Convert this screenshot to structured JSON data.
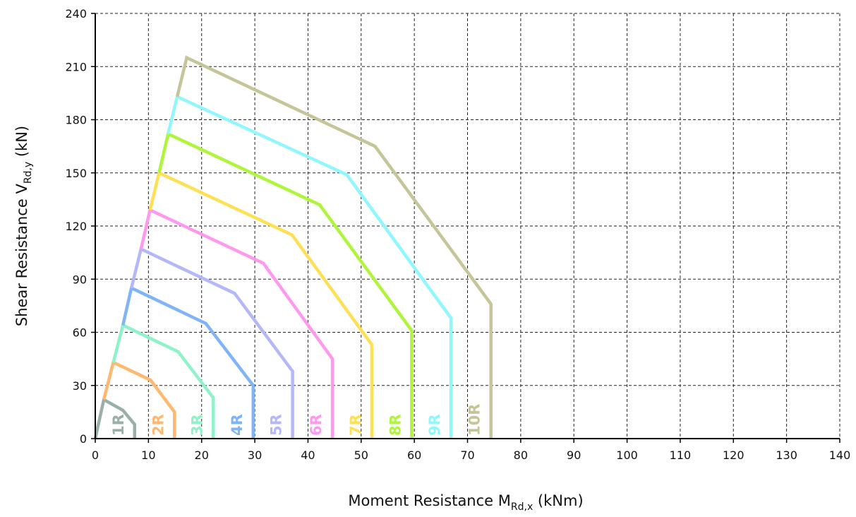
{
  "chart_data": {
    "type": "line",
    "xlabel": {
      "main": "Moment Resistance M",
      "sub": "Rd,x",
      "unit": " (kNm)"
    },
    "ylabel": {
      "main": "Shear Resistance V",
      "sub": "Rd,y",
      "unit": " (kN)"
    },
    "xlim": [
      0,
      140
    ],
    "ylim": [
      0,
      240
    ],
    "x_ticks": [
      0,
      10,
      20,
      30,
      40,
      50,
      60,
      70,
      80,
      90,
      100,
      110,
      120,
      130,
      140
    ],
    "y_ticks": [
      0,
      30,
      60,
      90,
      120,
      150,
      180,
      210,
      240
    ],
    "grid": true,
    "series": [
      {
        "name": "1R",
        "color": "#9aafa9",
        "x": [
          0,
          1.6,
          5.2,
          7.4,
          7.4
        ],
        "y": [
          0,
          22,
          16,
          8,
          0
        ]
      },
      {
        "name": "2R",
        "color": "#ffb870",
        "x": [
          1.6,
          3.4,
          10.4,
          14.9,
          14.9
        ],
        "y": [
          22,
          43,
          33,
          15,
          0
        ]
      },
      {
        "name": "3R",
        "color": "#8ff2c8",
        "x": [
          3.4,
          5.2,
          15.6,
          22.2,
          22.2
        ],
        "y": [
          43,
          64,
          49,
          23,
          0
        ]
      },
      {
        "name": "4R",
        "color": "#80b4f7",
        "x": [
          5.2,
          6.8,
          20.8,
          29.7,
          29.7
        ],
        "y": [
          64,
          85,
          65,
          30,
          0
        ]
      },
      {
        "name": "5R",
        "color": "#b4b8f8",
        "x": [
          6.8,
          8.6,
          26.2,
          37.1,
          37.1
        ],
        "y": [
          85,
          107,
          82,
          38,
          0
        ]
      },
      {
        "name": "6R",
        "color": "#ff99ee",
        "x": [
          8.6,
          10.3,
          31.6,
          44.6,
          44.6
        ],
        "y": [
          107,
          129,
          99,
          45,
          0
        ]
      },
      {
        "name": "7R",
        "color": "#ffe055",
        "x": [
          10.3,
          12.0,
          37.0,
          52.0,
          52.0
        ],
        "y": [
          129,
          150,
          115,
          53,
          0
        ]
      },
      {
        "name": "8R",
        "color": "#aef53b",
        "x": [
          12.0,
          13.7,
          42.2,
          59.5,
          59.5
        ],
        "y": [
          150,
          172,
          132,
          61,
          0
        ]
      },
      {
        "name": "9R",
        "color": "#8ff7fd",
        "x": [
          13.7,
          15.4,
          47.3,
          66.9,
          66.9
        ],
        "y": [
          172,
          193,
          149,
          68,
          0
        ]
      },
      {
        "name": "10R",
        "color": "#c5c59a",
        "x": [
          15.4,
          17.2,
          52.6,
          74.4,
          74.4
        ],
        "y": [
          193,
          215,
          165,
          76,
          0
        ]
      }
    ]
  }
}
